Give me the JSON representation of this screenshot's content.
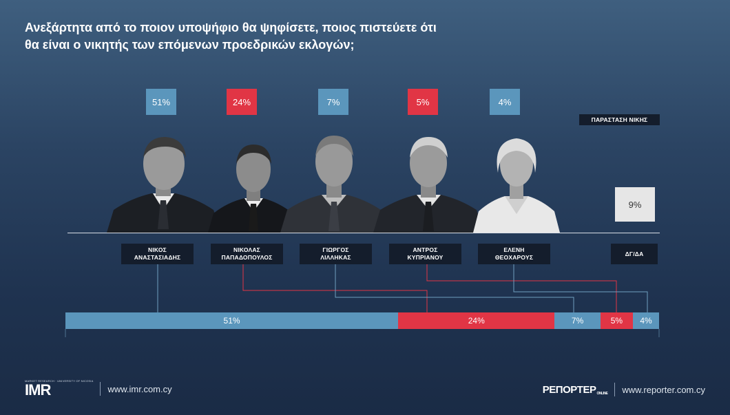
{
  "title": {
    "line1": "Ανεξάρτητα από το ποιον υποψήφιο θα ψηφίσετε, ποιος πιστεύετε ότι",
    "line2": "θα είναι ο νικητής των επόμενων προεδρικών εκλογών;"
  },
  "legend_label": "ΠΑΡΑΣΤΑΣΗ ΝΙΚΗΣ",
  "colors": {
    "blue": "#5b96bc",
    "red": "#e13545",
    "dk": "#e6e6e6",
    "connector_blue": "#6f9fbf",
    "connector_red": "#e13545"
  },
  "chart_data": {
    "type": "bar",
    "title": "Ανεξάρτητα από το ποιον υποψήφιο θα ψηφίσετε, ποιος πιστεύετε ότι θα είναι ο νικητής των επόμενων προεδρικών εκλογών;",
    "categories": [
      "ΝΙΚΟΣ ΑΝΑΣΤΑΣΙΑΔΗΣ",
      "ΝΙΚΟΛΑΣ ΠΑΠΑΔΟΠΟΥΛΟΣ",
      "ΓΙΩΡΓΟΣ ΛΙΛΛΗΚΑΣ",
      "ΑΝΤΡΟΣ ΚΥΠΡΙΑΝΟΥ",
      "ΕΛΕΝΗ ΘΕΟΧΑΡΟΥΣ",
      "ΔΓ/ΔΑ"
    ],
    "values": [
      51,
      24,
      7,
      5,
      4,
      9
    ],
    "labels": [
      "51%",
      "24%",
      "7%",
      "5%",
      "4%",
      "9%"
    ],
    "stacked_bar": {
      "segments": [
        {
          "label": "51%",
          "value": 51,
          "color": "blue"
        },
        {
          "label": "24%",
          "value": 24,
          "color": "red"
        },
        {
          "label": "7%",
          "value": 7,
          "color": "blue"
        },
        {
          "label": "5%",
          "value": 5,
          "color": "red"
        },
        {
          "label": "4%",
          "value": 4,
          "color": "blue"
        }
      ]
    },
    "candidates": [
      {
        "line1": "ΝΙΚΟΣ",
        "line2": "ΑΝΑΣΤΑΣΙΑΔΗΣ",
        "pct": "51%",
        "color": "blue"
      },
      {
        "line1": "ΝΙΚΟΛΑΣ",
        "line2": "ΠΑΠΑΔΟΠΟΥΛΟΣ",
        "pct": "24%",
        "color": "red"
      },
      {
        "line1": "ΓΙΩΡΓΟΣ",
        "line2": "ΛΙΛΛΗΚΑΣ",
        "pct": "7%",
        "color": "blue"
      },
      {
        "line1": "ΑΝΤΡΟΣ",
        "line2": "ΚΥΠΡΙΑΝΟΥ",
        "pct": "5%",
        "color": "red"
      },
      {
        "line1": "ΕΛΕΝΗ",
        "line2": "ΘΕΟΧΑΡΟΥΣ",
        "pct": "4%",
        "color": "blue"
      }
    ],
    "dk": {
      "label": "ΔΓ/ΔΑ",
      "pct": "9%"
    }
  },
  "footer": {
    "imr_small": "MARKET RESEARCH · UNIVERSITY OF NICOSIA",
    "imr_logo": "IMR",
    "imr_url": "www.imr.com.cy",
    "reporter_logo": "ΡΕΠΟΡΤΕΡ",
    "reporter_online": "ONLINE",
    "reporter_url": "www.reporter.com.cy"
  }
}
